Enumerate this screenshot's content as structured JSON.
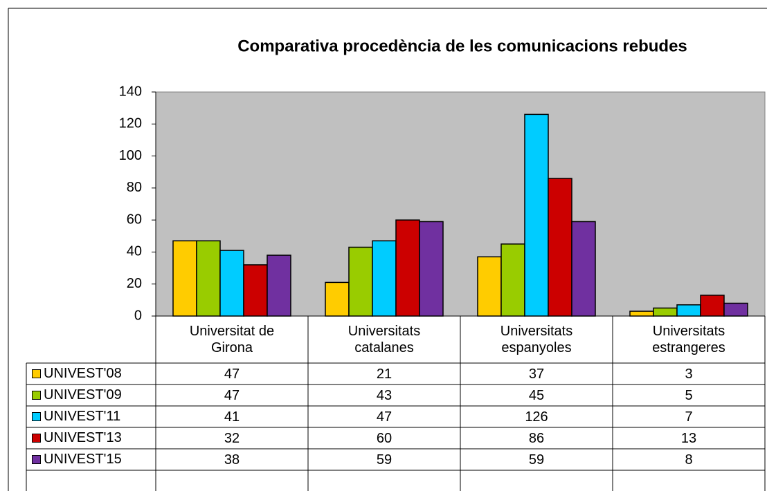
{
  "chart_data": {
    "type": "bar",
    "title": "Comparativa procedència de les comunicacions  rebudes",
    "categories": [
      "Universitat de Girona",
      "Universitats catalanes",
      "Universitats espanyoles",
      "Universitats estrangeres"
    ],
    "series": [
      {
        "name": "UNIVEST'08",
        "color": "#ffcc00",
        "values": [
          47,
          21,
          37,
          3
        ]
      },
      {
        "name": "UNIVEST'09",
        "color": "#99cc00",
        "values": [
          47,
          43,
          45,
          5
        ]
      },
      {
        "name": "UNIVEST'11",
        "color": "#00ccff",
        "values": [
          41,
          47,
          126,
          7
        ]
      },
      {
        "name": "UNIVEST'13",
        "color": "#cc0000",
        "values": [
          32,
          60,
          86,
          13
        ]
      },
      {
        "name": "UNIVEST'15",
        "color": "#7030a0",
        "values": [
          38,
          59,
          59,
          8
        ]
      }
    ],
    "ylim": [
      0,
      140
    ],
    "yticks": [
      0,
      20,
      40,
      60,
      80,
      100,
      120,
      140
    ],
    "grid": false
  }
}
